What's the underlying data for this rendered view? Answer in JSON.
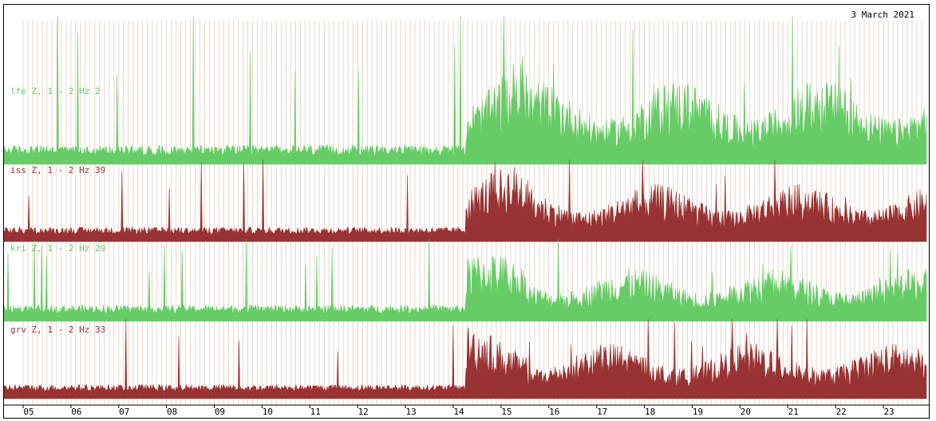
{
  "date_label": "3 March 2021",
  "colors": {
    "green": "#66cc66",
    "red": "#993333",
    "grid": "#e8d6c8",
    "axis": "#000000"
  },
  "chart_data": {
    "type": "area",
    "title": "3 March 2021",
    "xlabel": "",
    "ylabel": "",
    "x_ticks": [
      "05",
      "06",
      "07",
      "08",
      "09",
      "10",
      "11",
      "12",
      "13",
      "14",
      "15",
      "16",
      "17",
      "18",
      "19",
      "20",
      "21",
      "22",
      "23"
    ],
    "grid": true,
    "series": [
      {
        "name": "lfe Z, 1 - 2 Hz 2",
        "color": "#66cc66",
        "baseline_level": 0.08,
        "onset_hour": 14.25,
        "active_level": 0.45
      },
      {
        "name": "iss Z, 1 - 2 Hz 39",
        "color": "#993333",
        "baseline_level": 0.1,
        "onset_hour": 14.25,
        "active_level": 0.55
      },
      {
        "name": "kri Z, 1 - 2 Hz 29",
        "color": "#66cc66",
        "baseline_level": 0.12,
        "onset_hour": 14.25,
        "active_level": 0.5
      },
      {
        "name": "grv Z, 1 - 2 Hz 33",
        "color": "#993333",
        "baseline_level": 0.1,
        "onset_hour": 14.25,
        "active_level": 0.55
      }
    ]
  }
}
